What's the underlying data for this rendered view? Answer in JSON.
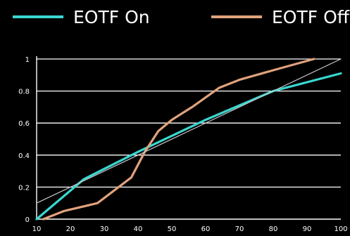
{
  "chart_data": {
    "type": "line",
    "title": "",
    "xlabel": "",
    "ylabel": "",
    "legend_placement": "top",
    "grid": true,
    "xlim": [
      10,
      100
    ],
    "ylim": [
      0,
      1
    ],
    "x_ticks": [
      10,
      20,
      30,
      40,
      50,
      60,
      70,
      80,
      90,
      100
    ],
    "y_ticks": [
      0,
      0.2,
      0.4,
      0.6,
      0.8,
      1
    ],
    "series": [
      {
        "name": "EOTF On",
        "color": "#3ad7d0",
        "x": [
          10,
          24,
          40,
          60,
          80,
          100
        ],
        "y": [
          0,
          0.25,
          0.42,
          0.62,
          0.8,
          0.91
        ]
      },
      {
        "name": "EOTF Off",
        "color": "#e0a27c",
        "x": [
          12,
          18,
          28,
          38,
          42,
          46,
          50,
          56,
          64,
          70,
          80,
          92
        ],
        "y": [
          0,
          0.05,
          0.1,
          0.26,
          0.42,
          0.55,
          0.62,
          0.7,
          0.82,
          0.87,
          0.93,
          1.0
        ]
      },
      {
        "name": "",
        "color": "#c8c8c8",
        "x": [
          10,
          100
        ],
        "y": [
          0.1,
          1.0
        ]
      }
    ]
  }
}
